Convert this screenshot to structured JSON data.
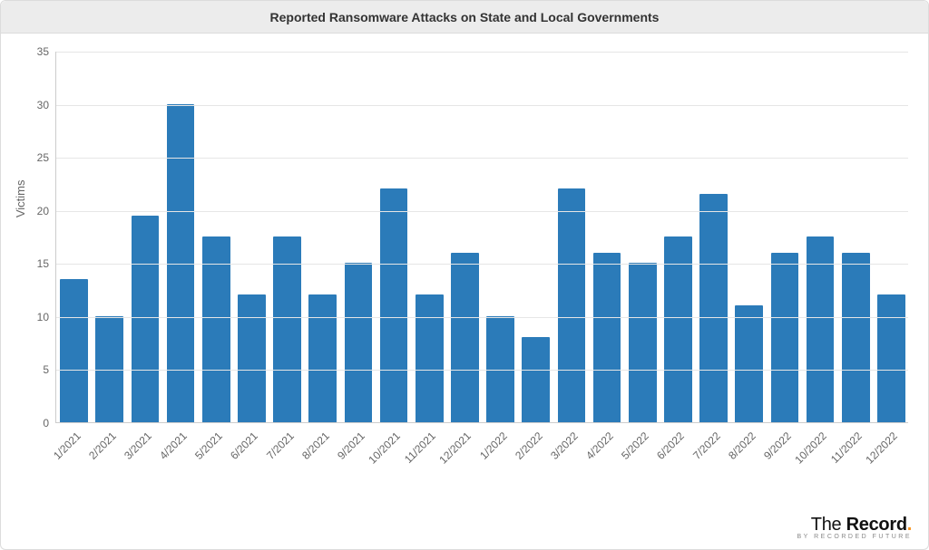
{
  "chart": {
    "type": "bar",
    "title": "Reported Ransomware Attacks on State and Local Governments",
    "title_fontsize": 14,
    "title_color": "#333333",
    "title_bg": "#ececec",
    "ylabel": "Victims",
    "label_fontsize": 13,
    "label_color": "#666666",
    "categories": [
      "1/2021",
      "2/2021",
      "3/2021",
      "4/2021",
      "5/2021",
      "6/2021",
      "7/2021",
      "8/2021",
      "9/2021",
      "10/2021",
      "11/2021",
      "12/2021",
      "1/2022",
      "2/2022",
      "3/2022",
      "4/2022",
      "5/2022",
      "6/2022",
      "7/2022",
      "8/2022",
      "9/2022",
      "10/2022",
      "11/2022",
      "12/2022"
    ],
    "values": [
      13.5,
      10,
      19.5,
      30,
      17.5,
      12,
      17.5,
      12,
      15,
      22,
      12,
      16,
      10,
      8,
      22,
      16,
      15,
      17.5,
      21.5,
      11,
      16,
      17.5,
      16,
      12
    ],
    "bar_color": "#2b7bb9",
    "ylim": [
      0,
      35
    ],
    "ytick_step": 5,
    "yticks": [
      0,
      5,
      10,
      15,
      20,
      25,
      30,
      35
    ],
    "background_color": "#ffffff",
    "grid_color": "#e6e6e6",
    "axis_color": "#cccccc",
    "tick_label_color": "#666666",
    "tick_fontsize": 12,
    "bar_width_ratio": 0.78,
    "xtick_rotation_deg": -45
  },
  "attribution": {
    "brand_thin": "The ",
    "brand_bold": "Record",
    "brand_dot": ".",
    "tagline": "BY RECORDED FUTURE",
    "primary_color": "#111111",
    "accent_color": "#f7931e",
    "tagline_color": "#888888"
  }
}
